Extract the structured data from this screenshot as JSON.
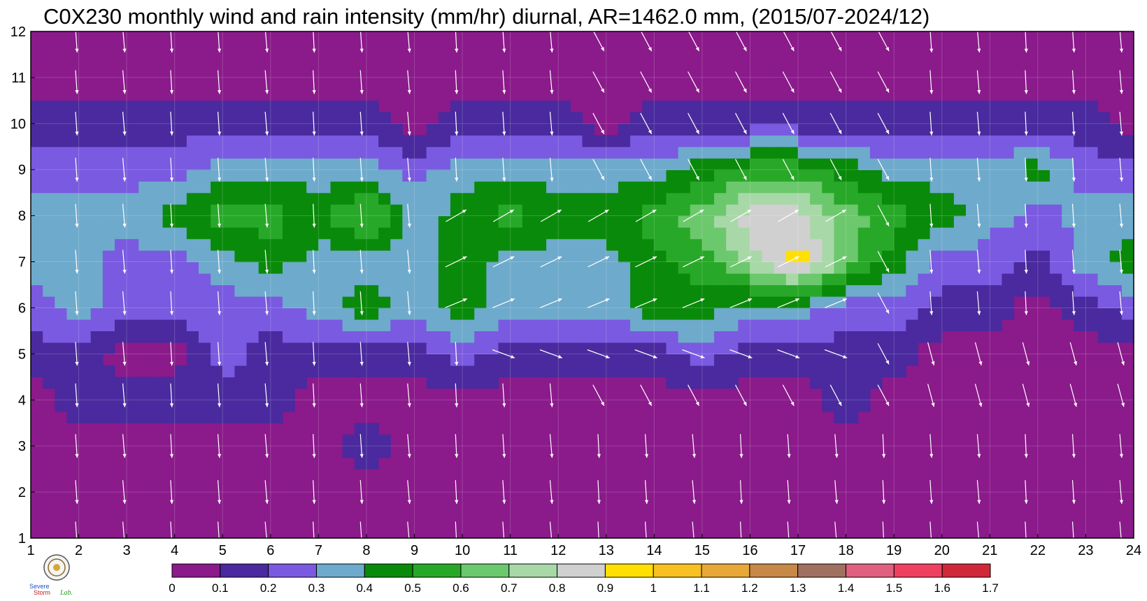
{
  "chart_data": {
    "type": "heatmap",
    "title": "C0X230 monthly wind and rain intensity (mm/hr) diurnal, AR=1462.0 mm, (2015/07-2024/12)",
    "xlabel": "",
    "ylabel": "",
    "x_ticks": [
      1,
      2,
      3,
      4,
      5,
      6,
      7,
      8,
      9,
      10,
      11,
      12,
      13,
      14,
      15,
      16,
      17,
      18,
      19,
      20,
      21,
      22,
      23,
      24
    ],
    "y_ticks": [
      1,
      2,
      3,
      4,
      5,
      6,
      7,
      8,
      9,
      10,
      11,
      12
    ],
    "xlim": [
      1,
      24
    ],
    "ylim": [
      1,
      12
    ],
    "grid": true,
    "colorbar": {
      "position": "bottom",
      "levels": [
        0,
        0.1,
        0.2,
        0.3,
        0.4,
        0.5,
        0.6,
        0.7,
        0.8,
        0.9,
        1,
        1.1,
        1.2,
        1.3,
        1.4,
        1.5,
        1.6,
        1.7
      ],
      "labels": [
        "0",
        "0.1",
        "0.2",
        "0.3",
        "0.4",
        "0.5",
        "0.6",
        "0.7",
        "0.8",
        "0.9",
        "1",
        "1.1",
        "1.2",
        "1.3",
        "1.4",
        "1.5",
        "1.6",
        "1.7"
      ],
      "colors": [
        "#8B1A8B",
        "#4A2A9E",
        "#7A5AE0",
        "#6EAACC",
        "#0A8A0A",
        "#28A828",
        "#6CC86C",
        "#A8D8A8",
        "#D0D0D0",
        "#FFE000",
        "#F8C020",
        "#E8A838",
        "#C88848",
        "#A07060",
        "#E06080",
        "#F04060",
        "#D02838"
      ]
    },
    "rain_intensity_grid": [
      [
        0.05,
        0.05,
        0.05,
        0.05,
        0.05,
        0.05,
        0.05,
        0.05,
        0.05,
        0.05,
        0.05,
        0.05,
        0.05,
        0.05,
        0.05,
        0.05,
        0.05,
        0.05,
        0.05,
        0.05,
        0.05,
        0.05,
        0.05,
        0.05
      ],
      [
        0.05,
        0.05,
        0.05,
        0.05,
        0.05,
        0.05,
        0.05,
        0.05,
        0.05,
        0.05,
        0.05,
        0.05,
        0.05,
        0.05,
        0.05,
        0.05,
        0.05,
        0.05,
        0.05,
        0.05,
        0.05,
        0.05,
        0.05,
        0.05
      ],
      [
        0.05,
        0.05,
        0.05,
        0.05,
        0.05,
        0.05,
        0.05,
        0.15,
        0.05,
        0.05,
        0.05,
        0.05,
        0.05,
        0.05,
        0.05,
        0.05,
        0.05,
        0.05,
        0.05,
        0.05,
        0.05,
        0.05,
        0.05,
        0.05
      ],
      [
        0.05,
        0.15,
        0.15,
        0.15,
        0.15,
        0.15,
        0.05,
        0.05,
        0.05,
        0.05,
        0.05,
        0.05,
        0.05,
        0.05,
        0.05,
        0.05,
        0.05,
        0.15,
        0.05,
        0.05,
        0.05,
        0.05,
        0.05,
        0.05
      ],
      [
        0.15,
        0.15,
        0.05,
        0.05,
        0.25,
        0.15,
        0.15,
        0.15,
        0.15,
        0.25,
        0.15,
        0.15,
        0.15,
        0.15,
        0.25,
        0.15,
        0.15,
        0.15,
        0.15,
        0.05,
        0.05,
        0.05,
        0.05,
        0.05
      ],
      [
        0.25,
        0.35,
        0.25,
        0.25,
        0.25,
        0.25,
        0.35,
        0.45,
        0.35,
        0.45,
        0.35,
        0.35,
        0.35,
        0.45,
        0.45,
        0.35,
        0.35,
        0.25,
        0.25,
        0.15,
        0.15,
        0.05,
        0.15,
        0.25
      ],
      [
        0.35,
        0.35,
        0.25,
        0.25,
        0.35,
        0.45,
        0.35,
        0.35,
        0.35,
        0.45,
        0.35,
        0.35,
        0.35,
        0.45,
        0.55,
        0.75,
        0.95,
        0.65,
        0.45,
        0.25,
        0.25,
        0.15,
        0.35,
        0.45
      ],
      [
        0.35,
        0.35,
        0.35,
        0.45,
        0.55,
        0.55,
        0.45,
        0.65,
        0.35,
        0.45,
        0.55,
        0.45,
        0.45,
        0.55,
        0.65,
        0.85,
        0.85,
        0.65,
        0.55,
        0.45,
        0.35,
        0.25,
        0.35,
        0.35
      ],
      [
        0.25,
        0.25,
        0.25,
        0.25,
        0.35,
        0.35,
        0.35,
        0.35,
        0.25,
        0.35,
        0.35,
        0.35,
        0.35,
        0.35,
        0.45,
        0.55,
        0.55,
        0.45,
        0.35,
        0.35,
        0.35,
        0.45,
        0.25,
        0.25
      ],
      [
        0.15,
        0.15,
        0.15,
        0.15,
        0.15,
        0.15,
        0.15,
        0.15,
        0.05,
        0.15,
        0.15,
        0.15,
        0.05,
        0.15,
        0.15,
        0.15,
        0.15,
        0.15,
        0.15,
        0.15,
        0.15,
        0.15,
        0.15,
        0.05
      ],
      [
        0.05,
        0.05,
        0.05,
        0.05,
        0.05,
        0.05,
        0.05,
        0.05,
        0.05,
        0.05,
        0.05,
        0.05,
        0.05,
        0.05,
        0.05,
        0.05,
        0.05,
        0.05,
        0.05,
        0.05,
        0.05,
        0.05,
        0.05,
        0.05
      ],
      [
        0.05,
        0.05,
        0.05,
        0.05,
        0.05,
        0.05,
        0.05,
        0.05,
        0.05,
        0.05,
        0.05,
        0.05,
        0.05,
        0.05,
        0.05,
        0.05,
        0.05,
        0.05,
        0.05,
        0.05,
        0.05,
        0.05,
        0.05,
        0.05
      ]
    ],
    "wind_direction": "white arrows, predominantly southward / south-south-east; eastward during daytime hours (about 10-18) in months 6-8"
  },
  "logo": {
    "text_severe": "Severe",
    "text_storm": "Storm",
    "text_lab": "Lab."
  }
}
